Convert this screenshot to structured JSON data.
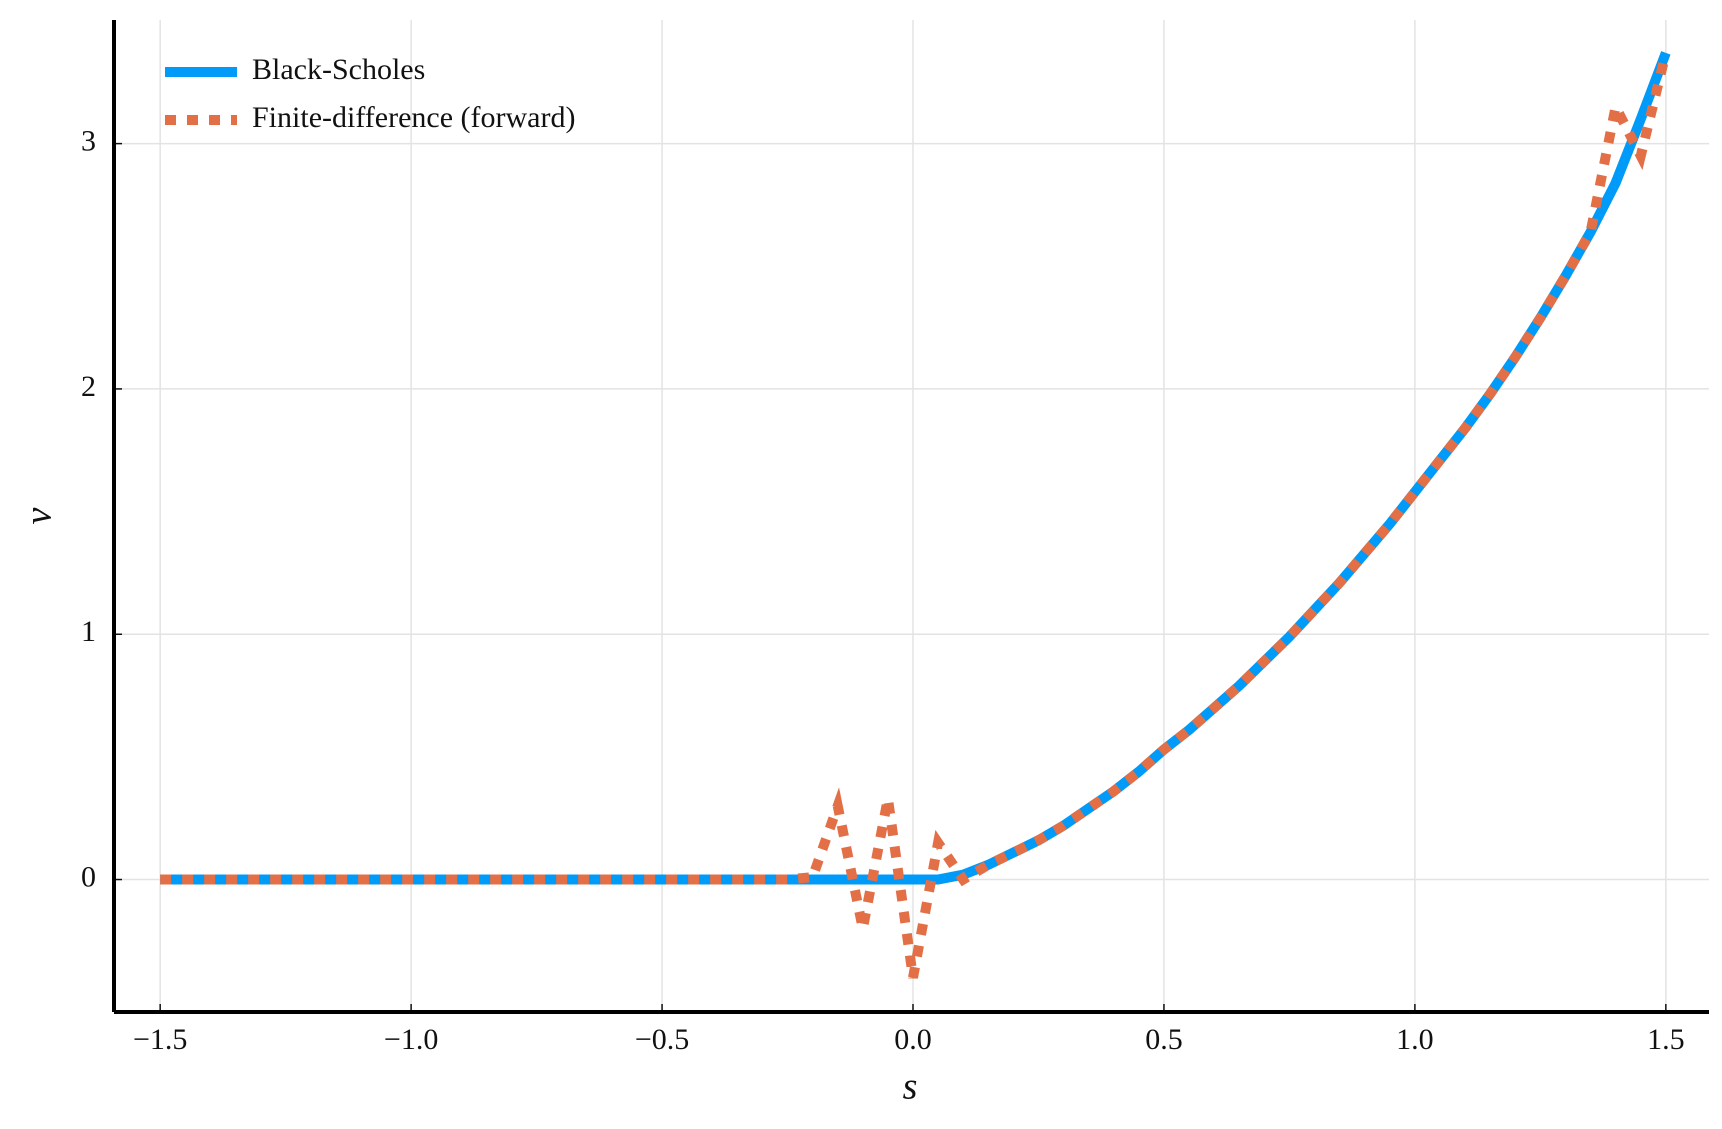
{
  "chart_data": {
    "type": "line",
    "x_label": "s",
    "y_label": "v",
    "x": [
      -1.5,
      -1.45,
      -1.4,
      -1.35,
      -1.3,
      -1.25,
      -1.2,
      -1.15,
      -1.1,
      -1.05,
      -1.0,
      -0.95,
      -0.9,
      -0.85,
      -0.8,
      -0.75,
      -0.7,
      -0.65,
      -0.6,
      -0.55,
      -0.5,
      -0.45,
      -0.4,
      -0.35,
      -0.3,
      -0.25,
      -0.2,
      -0.15,
      -0.1,
      -0.05,
      0.0,
      0.05,
      0.1,
      0.15,
      0.2,
      0.25,
      0.3,
      0.35,
      0.4,
      0.45,
      0.5,
      0.55,
      0.6,
      0.65,
      0.7,
      0.75,
      0.8,
      0.85,
      0.9,
      0.95,
      1.0,
      1.05,
      1.1,
      1.15,
      1.2,
      1.25,
      1.3,
      1.35,
      1.4,
      1.45,
      1.5
    ],
    "series": [
      {
        "name": "Black-Scholes",
        "color": "#009af9",
        "style": "solid",
        "values": [
          0,
          0,
          0,
          0,
          0,
          0,
          0,
          0,
          0,
          0,
          0,
          0,
          0,
          0,
          0,
          0,
          0,
          0,
          0,
          0,
          0,
          0,
          0,
          0,
          0,
          0,
          0,
          0,
          0,
          0,
          0,
          0.0,
          0.02,
          0.06,
          0.11,
          0.16,
          0.22,
          0.29,
          0.36,
          0.44,
          0.53,
          0.61,
          0.7,
          0.79,
          0.89,
          0.99,
          1.1,
          1.21,
          1.33,
          1.45,
          1.58,
          1.71,
          1.84,
          1.98,
          2.13,
          2.29,
          2.46,
          2.64,
          2.84,
          3.1,
          3.37
        ]
      },
      {
        "name": "Finite-difference (forward)",
        "color": "#e26f46",
        "style": "dashed",
        "values": [
          0,
          0,
          0,
          0,
          0,
          0,
          0,
          0,
          0,
          0,
          0,
          0,
          0,
          0,
          0,
          0,
          0,
          0,
          0,
          0,
          0,
          0,
          0,
          0,
          0,
          0,
          0.01,
          0.3,
          -0.2,
          0.33,
          -0.4,
          0.15,
          0.0,
          0.06,
          0.11,
          0.16,
          0.22,
          0.29,
          0.36,
          0.44,
          0.53,
          0.61,
          0.7,
          0.79,
          0.89,
          0.99,
          1.1,
          1.21,
          1.33,
          1.45,
          1.58,
          1.71,
          1.84,
          1.98,
          2.13,
          2.29,
          2.46,
          2.64,
          3.15,
          2.95,
          3.37
        ]
      }
    ],
    "xlim": [
      -1.592,
      1.586
    ],
    "ylim": [
      -0.54,
      3.504
    ],
    "xticks": [
      {
        "value": -1.5,
        "label": "−1.5"
      },
      {
        "value": -1.0,
        "label": "−1.0"
      },
      {
        "value": -0.5,
        "label": "−0.5"
      },
      {
        "value": 0,
        "label": "0.0"
      },
      0.5,
      {
        "value": 1,
        "label": "1.0"
      },
      1.5
    ],
    "yticks": [
      0,
      1,
      2,
      3
    ],
    "grid": true,
    "legend": "top-left"
  }
}
